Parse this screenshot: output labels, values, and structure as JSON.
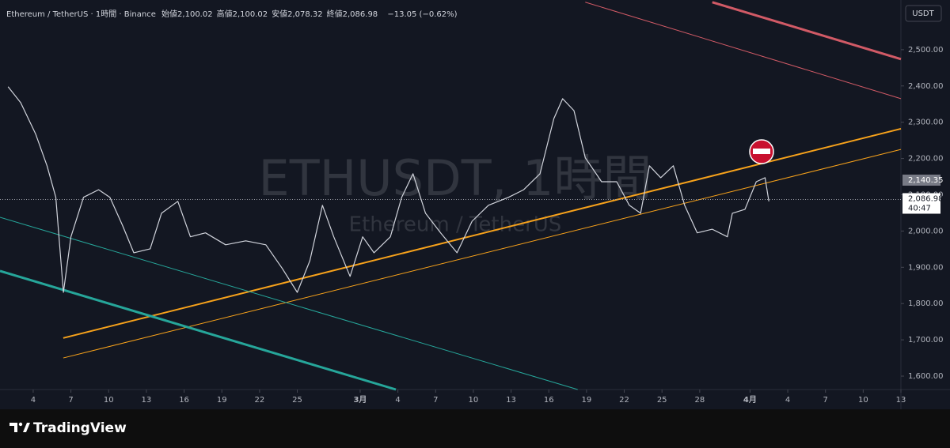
{
  "chart_data": {
    "type": "line",
    "symbol_line": "Ethereum / TetherUS · 1時間 · Binance",
    "ohlc": [
      {
        "label": "始値",
        "value": "2,100.02"
      },
      {
        "label": "高値",
        "value": "2,100.02"
      },
      {
        "label": "安値",
        "value": "2,078.32"
      },
      {
        "label": "終値",
        "value": "2,086.98"
      }
    ],
    "change": "−13.05 (−0.62%)",
    "watermark": "ETHUSDT, 1時間",
    "watermark_sub": "Ethereum / TetherUS",
    "currency": "USDT",
    "x": [
      2.0,
      3.0,
      4.2,
      5.1,
      5.8,
      6.4,
      7.0,
      8.0,
      9.2,
      10.1,
      11.1,
      12.0,
      13.3,
      14.2,
      15.5,
      16.5,
      17.7,
      19.3,
      20.9,
      22.5,
      23.8,
      25.0,
      26.0,
      27.0,
      27.9,
      29.2,
      30.2,
      31.1,
      32.4,
      33.3,
      34.2,
      35.2,
      36.4,
      37.7,
      38.9,
      40.2,
      41.8,
      43.0,
      44.3,
      45.4,
      46.1,
      47.0,
      47.9,
      49.2,
      50.4,
      51.4,
      52.3,
      53.0,
      53.9,
      54.9,
      55.8,
      56.8,
      58.0,
      59.2,
      59.6,
      60.6,
      61.5,
      62.2,
      62.5
    ],
    "series": [
      {
        "name": "ETHUSDT",
        "color": "#d1d4dc",
        "values": [
          2398,
          2354,
          2267,
          2180,
          2093,
          1831,
          1984,
          2093,
          2114,
          2093,
          2016,
          1940,
          1951,
          2049,
          2082,
          1984,
          1995,
          1962,
          1973,
          1962,
          1897,
          1831,
          1918,
          2071,
          1984,
          1875,
          1984,
          1940,
          1984,
          2093,
          2158,
          2049,
          1995,
          1940,
          2027,
          2071,
          2093,
          2114,
          2158,
          2310,
          2365,
          2332,
          2202,
          2136,
          2136,
          2071,
          2049,
          2180,
          2147,
          2180,
          2071,
          1995,
          2005,
          1984,
          2049,
          2060,
          2136,
          2147,
          2082
        ]
      }
    ],
    "trendlines": [
      {
        "color": "#f7a21b",
        "width": 2,
        "points": [
          [
            6.39,
            1705
          ],
          [
            73,
            2282
          ]
        ]
      },
      {
        "color": "#f7a21b",
        "width": 1,
        "points": [
          [
            6.39,
            1650
          ],
          [
            73,
            2225
          ]
        ]
      },
      {
        "color": "#26a69a",
        "width": 3,
        "points": [
          [
            1.36,
            1890
          ],
          [
            32.84,
            1563
          ]
        ]
      },
      {
        "color": "#26a69a",
        "width": 1,
        "points": [
          [
            1.36,
            2038
          ],
          [
            47.3,
            1563
          ]
        ]
      },
      {
        "color": "#d15a66",
        "width": 3,
        "points": [
          [
            58.0,
            2631
          ],
          [
            73,
            2474
          ]
        ]
      },
      {
        "color": "#d15a66",
        "width": 1,
        "points": [
          [
            47.9,
            2631
          ],
          [
            73,
            2365
          ]
        ]
      }
    ],
    "last_price": {
      "value": 2086.98,
      "label": "2,086.98"
    },
    "countdown": "40:47",
    "prev_price": {
      "value": 2140.35,
      "label": "2,140.35"
    },
    "xlim": [
      1.36,
      73
    ],
    "ylim": [
      1563,
      2637
    ],
    "xticks": [
      4,
      7,
      10,
      13,
      16,
      19,
      22,
      25,
      {
        "value": 30,
        "label": "3月"
      },
      {
        "value": 33,
        "label": "4"
      },
      {
        "value": 36,
        "label": "7"
      },
      {
        "value": 39,
        "label": "10"
      },
      {
        "value": 42,
        "label": "13"
      },
      {
        "value": 45,
        "label": "16"
      },
      {
        "value": 48,
        "label": "19"
      },
      {
        "value": 51,
        "label": "22"
      },
      {
        "value": 54,
        "label": "25"
      },
      {
        "value": 57,
        "label": "28"
      },
      {
        "value": 61,
        "label": "4月"
      },
      {
        "value": 64,
        "label": "4"
      },
      {
        "value": 67,
        "label": "7"
      },
      {
        "value": 70,
        "label": "10"
      },
      {
        "value": 73,
        "label": "13"
      }
    ],
    "yticks": [
      {
        "value": 1600,
        "label": "1,600.00"
      },
      {
        "value": 1700,
        "label": "1,700.00"
      },
      {
        "value": 1800,
        "label": "1,800.00"
      },
      {
        "value": 1900,
        "label": "1,900.00"
      },
      {
        "value": 2000,
        "label": "2,000.00"
      },
      {
        "value": 2100,
        "label": "2,100.00"
      },
      {
        "value": 2200,
        "label": "2,200.00"
      },
      {
        "value": 2300,
        "label": "2,300.00"
      },
      {
        "value": 2400,
        "label": "2,400.00"
      },
      {
        "value": 2500,
        "label": "2,500.00"
      }
    ]
  },
  "brand": "TradingView"
}
